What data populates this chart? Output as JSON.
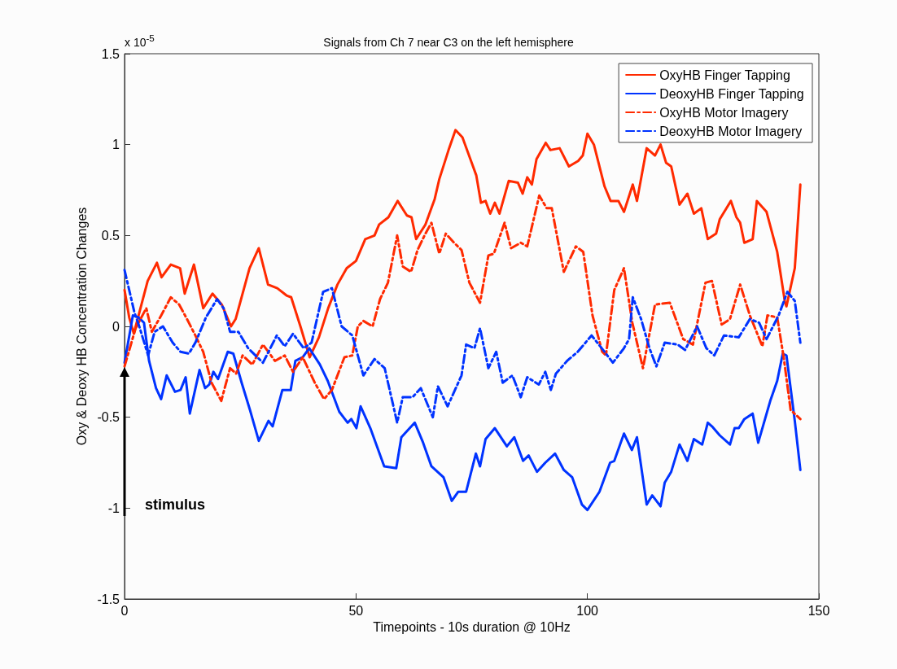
{
  "chart_data": {
    "type": "line",
    "title": "Signals from Ch 7 near C3 on the left hemisphere",
    "xlabel": "Timepoints - 10s duration @ 10Hz",
    "ylabel": "Oxy & Deoxy HB Concentration Changes",
    "annotations": [
      "x 10$^{-5}$",
      "stimulus"
    ],
    "xlim": [
      0,
      150
    ],
    "xticks": [
      0,
      50,
      100,
      150
    ],
    "ylim": [
      -1.5,
      1.5
    ],
    "yticks": [
      -1.5,
      -1,
      -0.5,
      0,
      0.5,
      1,
      1.5
    ],
    "grid": false,
    "legend": "top right",
    "marker": "none",
    "series": [
      {
        "name": "OxyHB Finger Tapping",
        "color": "#ff2a00",
        "line_style": "solid",
        "x": [
          0,
          1,
          2,
          5,
          7,
          8,
          10,
          12,
          13,
          15,
          17,
          19,
          21,
          23,
          24,
          27,
          29,
          31,
          33,
          35,
          36,
          38,
          40,
          42,
          44,
          46,
          48,
          50,
          52,
          54,
          55,
          57,
          59,
          61,
          62,
          63,
          65,
          67,
          68,
          70,
          71.5,
          73,
          75,
          76,
          77,
          78,
          79,
          80,
          81,
          83,
          85,
          86,
          87,
          88,
          89,
          91,
          92,
          94,
          96,
          98,
          99,
          100,
          101.4,
          103.7,
          105,
          106.7,
          107.9,
          109.8,
          110.7,
          112.8,
          114.6,
          115.8,
          117,
          118.1,
          119.9,
          121.6,
          123,
          124.6,
          126,
          127.8,
          128.6,
          131,
          132.2,
          133,
          133.9,
          135.7,
          136.6,
          138.7,
          141,
          142.7,
          143,
          144.8,
          146
        ],
        "values": [
          0.2,
          0.05,
          -0.04,
          0.25,
          0.35,
          0.27,
          0.34,
          0.32,
          0.18,
          0.34,
          0.1,
          0.18,
          0.12,
          0,
          0.04,
          0.32,
          0.43,
          0.23,
          0.21,
          0.17,
          0.16,
          0,
          -0.17,
          -0.06,
          0.1,
          0.23,
          0.32,
          0.36,
          0.48,
          0.5,
          0.56,
          0.6,
          0.69,
          0.61,
          0.6,
          0.48,
          0.56,
          0.7,
          0.81,
          0.97,
          1.08,
          1.04,
          0.9,
          0.83,
          0.68,
          0.69,
          0.62,
          0.68,
          0.62,
          0.8,
          0.79,
          0.73,
          0.82,
          0.78,
          0.92,
          1.01,
          0.97,
          0.98,
          0.88,
          0.91,
          0.94,
          1.06,
          1,
          0.77,
          0.69,
          0.69,
          0.63,
          0.78,
          0.69,
          0.98,
          0.94,
          1,
          0.9,
          0.88,
          0.67,
          0.73,
          0.62,
          0.65,
          0.48,
          0.51,
          0.59,
          0.69,
          0.6,
          0.57,
          0.46,
          0.48,
          0.69,
          0.63,
          0.41,
          0.13,
          0.11,
          0.32,
          0.78
        ]
      },
      {
        "name": "DeoxyHB Finger Tapping",
        "color": "#0033ff",
        "line_style": "solid",
        "x": [
          0,
          1.8,
          3,
          4.2,
          5.3,
          6.8,
          7.9,
          9.1,
          10.9,
          12.1,
          13.2,
          14.1,
          16.2,
          17.4,
          18.3,
          19.2,
          20.2,
          22.3,
          23.5,
          25.3,
          27.1,
          29,
          31.1,
          32,
          34.1,
          35.9,
          36.9,
          38.5,
          39.9,
          42.2,
          43.9,
          46.4,
          48.2,
          49,
          50.1,
          51,
          53.1,
          56.1,
          58.7,
          59.8,
          62.7,
          64.5,
          66.3,
          68.9,
          70.7,
          72.1,
          73.8,
          75.9,
          76.8,
          78,
          80,
          82.6,
          84.2,
          86.1,
          87.3,
          89.1,
          90.9,
          93,
          94.9,
          96.7,
          98.8,
          100,
          102.6,
          104.9,
          105.8,
          107.9,
          109.6,
          110.7,
          112.8,
          114,
          115.8,
          116.7,
          118.1,
          119.9,
          121.6,
          123,
          124.8,
          126,
          126.9,
          128.6,
          130.8,
          131.8,
          132.7,
          133.9,
          135.7,
          136.9,
          139.5,
          141,
          142.2,
          143,
          144.8,
          146
        ],
        "values": [
          -0.2,
          0.06,
          0.05,
          0.02,
          -0.19,
          -0.34,
          -0.4,
          -0.27,
          -0.36,
          -0.35,
          -0.28,
          -0.48,
          -0.24,
          -0.34,
          -0.32,
          -0.25,
          -0.29,
          -0.14,
          -0.15,
          -0.31,
          -0.46,
          -0.63,
          -0.52,
          -0.55,
          -0.35,
          -0.35,
          -0.19,
          -0.17,
          -0.12,
          -0.21,
          -0.3,
          -0.47,
          -0.53,
          -0.51,
          -0.56,
          -0.44,
          -0.56,
          -0.77,
          -0.78,
          -0.61,
          -0.53,
          -0.64,
          -0.77,
          -0.83,
          -0.96,
          -0.91,
          -0.91,
          -0.7,
          -0.77,
          -0.62,
          -0.56,
          -0.66,
          -0.61,
          -0.74,
          -0.71,
          -0.8,
          -0.75,
          -0.7,
          -0.79,
          -0.83,
          -0.98,
          -1.01,
          -0.91,
          -0.75,
          -0.74,
          -0.59,
          -0.68,
          -0.61,
          -0.98,
          -0.93,
          -0.99,
          -0.86,
          -0.8,
          -0.65,
          -0.74,
          -0.62,
          -0.65,
          -0.53,
          -0.55,
          -0.6,
          -0.65,
          -0.56,
          -0.56,
          -0.51,
          -0.48,
          -0.64,
          -0.41,
          -0.3,
          -0.15,
          -0.16,
          -0.52,
          -0.79
        ]
      },
      {
        "name": "OxyHB Motor Imagery",
        "color": "#ff2a00",
        "line_style": "dashed",
        "x": [
          0,
          2.4,
          4.7,
          5.9,
          7.7,
          10,
          11.8,
          13.5,
          15.3,
          17,
          18.8,
          20.9,
          22.8,
          24.1,
          25.5,
          27.6,
          29.9,
          32.5,
          34.6,
          36.4,
          38.5,
          41.1,
          43.1,
          44.8,
          47.5,
          49.2,
          50.4,
          51.6,
          53.6,
          55.2,
          56.9,
          58.9,
          60.1,
          61.9,
          63.3,
          64.8,
          66.3,
          68,
          69.4,
          71.2,
          72.8,
          74.5,
          76.8,
          78.6,
          79.8,
          82.1,
          83.5,
          85.6,
          87,
          89.6,
          91.2,
          92.3,
          94.9,
          97.5,
          99.1,
          101.1,
          103.2,
          104,
          105.8,
          107.9,
          109.7,
          112,
          114.6,
          117.8,
          120.7,
          122.8,
          125.5,
          126.9,
          129,
          130.8,
          133,
          135.1,
          137.8,
          138.9,
          141,
          142.4,
          143.9,
          146
        ],
        "values": [
          -0.22,
          -0.01,
          0.1,
          -0.03,
          0.05,
          0.16,
          0.12,
          0.04,
          -0.05,
          -0.14,
          -0.31,
          -0.41,
          -0.23,
          -0.26,
          -0.16,
          -0.21,
          -0.1,
          -0.19,
          -0.16,
          -0.25,
          -0.17,
          -0.31,
          -0.4,
          -0.35,
          -0.17,
          -0.16,
          0,
          0.03,
          0,
          0.15,
          0.24,
          0.5,
          0.33,
          0.3,
          0.42,
          0.5,
          0.57,
          0.4,
          0.51,
          0.46,
          0.42,
          0.24,
          0.13,
          0.39,
          0.4,
          0.57,
          0.43,
          0.46,
          0.44,
          0.72,
          0.65,
          0.65,
          0.3,
          0.44,
          0.41,
          0.06,
          -0.14,
          -0.16,
          0.2,
          0.32,
          0.02,
          -0.23,
          0.12,
          0.13,
          -0.07,
          -0.1,
          0.24,
          0.25,
          0.01,
          0.04,
          0.23,
          0.06,
          -0.11,
          0.06,
          0.05,
          -0.17,
          -0.46,
          -0.51
        ]
      },
      {
        "name": "DeoxyHB Motor Imagery",
        "color": "#0033ff",
        "line_style": "dashed",
        "x": [
          0,
          2.1,
          3.3,
          5.1,
          6.5,
          8.3,
          10.4,
          12.1,
          13.9,
          15.3,
          17.6,
          20,
          21.4,
          22.8,
          24.6,
          26.7,
          29.9,
          32.9,
          34.6,
          36.4,
          38.7,
          40.4,
          42.9,
          44.8,
          46.9,
          49.2,
          51.6,
          54,
          56.2,
          58.9,
          60.1,
          62.2,
          64,
          66.6,
          67.7,
          69.8,
          72.8,
          73.8,
          75.6,
          76.8,
          78.6,
          80.3,
          81.7,
          83.8,
          85.6,
          87,
          89.5,
          90.9,
          92.1,
          93.2,
          95.6,
          97.9,
          100.9,
          103.7,
          105.5,
          107.9,
          109,
          109.8,
          111.6,
          113.4,
          114.9,
          116.7,
          119.5,
          121.1,
          123.7,
          125.7,
          127.4,
          129.5,
          132.7,
          135.1,
          137.1,
          138.7,
          141.3,
          143.2,
          144.8,
          146
        ],
        "values": [
          0.31,
          0.08,
          -0.01,
          -0.16,
          -0.03,
          0,
          -0.09,
          -0.14,
          -0.15,
          -0.09,
          0.05,
          0.15,
          0.1,
          -0.03,
          -0.03,
          -0.12,
          -0.2,
          -0.05,
          -0.11,
          -0.04,
          -0.12,
          -0.09,
          0.19,
          0.21,
          0,
          -0.05,
          -0.27,
          -0.18,
          -0.23,
          -0.53,
          -0.39,
          -0.39,
          -0.34,
          -0.5,
          -0.33,
          -0.44,
          -0.27,
          -0.1,
          -0.12,
          -0.01,
          -0.23,
          -0.14,
          -0.31,
          -0.27,
          -0.39,
          -0.28,
          -0.32,
          -0.25,
          -0.35,
          -0.26,
          -0.19,
          -0.14,
          -0.05,
          -0.14,
          -0.2,
          -0.12,
          -0.07,
          0.16,
          0.04,
          -0.12,
          -0.22,
          -0.09,
          -0.1,
          -0.13,
          0,
          -0.12,
          -0.16,
          -0.05,
          -0.06,
          0.04,
          0.02,
          -0.07,
          0.06,
          0.19,
          0.14,
          -0.09
        ]
      }
    ]
  }
}
